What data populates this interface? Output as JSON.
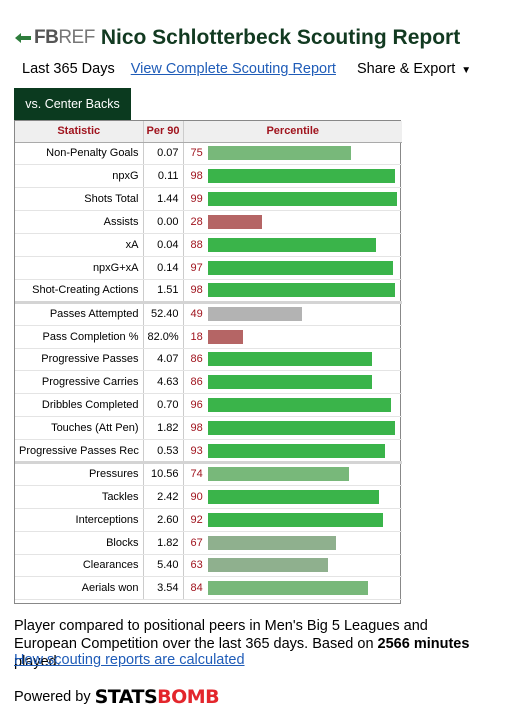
{
  "header": {
    "logo_fb": "FB",
    "logo_ref": "REF",
    "title": "Nico Schlotterbeck Scouting Report"
  },
  "subnav": {
    "period": "Last 365 Days",
    "full_report_link": "View Complete Scouting Report",
    "share_label": "Share & Export",
    "share_caret": "▼"
  },
  "tab": {
    "label": "vs. Center Backs"
  },
  "table": {
    "columns": [
      "Statistic",
      "Per 90",
      "Percentile"
    ],
    "groups": [
      [
        {
          "stat": "Non-Penalty Goals",
          "per90": "0.07",
          "pct": 75
        },
        {
          "stat": "npxG",
          "per90": "0.11",
          "pct": 98
        },
        {
          "stat": "Shots Total",
          "per90": "1.44",
          "pct": 99
        },
        {
          "stat": "Assists",
          "per90": "0.00",
          "pct": 28
        },
        {
          "stat": "xA",
          "per90": "0.04",
          "pct": 88
        },
        {
          "stat": "npxG+xA",
          "per90": "0.14",
          "pct": 97
        },
        {
          "stat": "Shot-Creating Actions",
          "per90": "1.51",
          "pct": 98
        }
      ],
      [
        {
          "stat": "Passes Attempted",
          "per90": "52.40",
          "pct": 49
        },
        {
          "stat": "Pass Completion %",
          "per90": "82.0%",
          "pct": 18
        },
        {
          "stat": "Progressive Passes",
          "per90": "4.07",
          "pct": 86
        },
        {
          "stat": "Progressive Carries",
          "per90": "4.63",
          "pct": 86
        },
        {
          "stat": "Dribbles Completed",
          "per90": "0.70",
          "pct": 96
        },
        {
          "stat": "Touches (Att Pen)",
          "per90": "1.82",
          "pct": 98
        },
        {
          "stat": "Progressive Passes Rec",
          "per90": "0.53",
          "pct": 93
        }
      ],
      [
        {
          "stat": "Pressures",
          "per90": "10.56",
          "pct": 74
        },
        {
          "stat": "Tackles",
          "per90": "2.42",
          "pct": 90
        },
        {
          "stat": "Interceptions",
          "per90": "2.60",
          "pct": 92
        },
        {
          "stat": "Blocks",
          "per90": "1.82",
          "pct": 67
        },
        {
          "stat": "Clearances",
          "per90": "5.40",
          "pct": 63
        },
        {
          "stat": "Aerials won",
          "per90": "3.54",
          "pct": 84
        }
      ]
    ]
  },
  "colors": {
    "high": "#3ab44a",
    "mid_high": "#78b87a",
    "mid_low": "#8fb08e",
    "average": "#b3b3b3",
    "low": "#b56565"
  },
  "footer": {
    "text_before": "Player compared to positional peers in Men's Big 5 Leagues and European Competition over the last 365 days. Based on ",
    "minutes": "2566 minutes",
    "text_after": " played.",
    "link": "How scouting reports are calculated",
    "powered_by": "Powered by",
    "statsbomb_stats": "STATS",
    "statsbomb_bomb": "BOMB"
  }
}
